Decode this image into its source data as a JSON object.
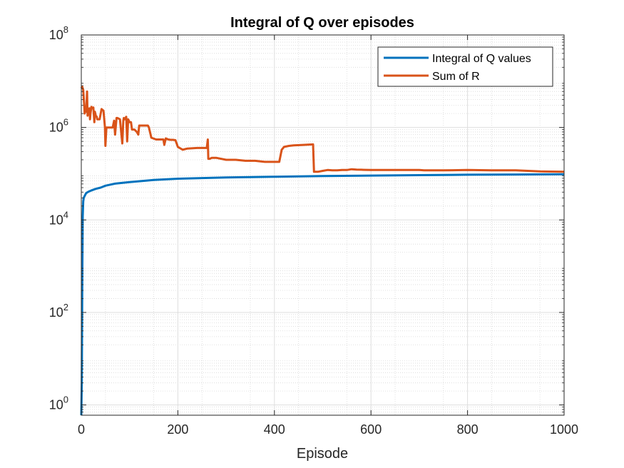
{
  "chart_data": {
    "type": "line",
    "title": "Integral of Q over episodes",
    "xlabel": "Episode",
    "ylabel": "",
    "xlim": [
      0,
      1000
    ],
    "ylim": [
      0.6,
      100000000
    ],
    "yscale": "log",
    "grid": true,
    "minor_grid": true,
    "legend_position": "top-right",
    "x_ticks": [
      {
        "value": 0,
        "label": "0"
      },
      {
        "value": 200,
        "label": "200"
      },
      {
        "value": 400,
        "label": "400"
      },
      {
        "value": 600,
        "label": "600"
      },
      {
        "value": 800,
        "label": "800"
      },
      {
        "value": 1000,
        "label": "1000"
      }
    ],
    "y_ticks": [
      {
        "value": 1,
        "base": "10",
        "exp": "0"
      },
      {
        "value": 100,
        "base": "10",
        "exp": "2"
      },
      {
        "value": 10000,
        "base": "10",
        "exp": "4"
      },
      {
        "value": 1000000,
        "base": "10",
        "exp": "6"
      },
      {
        "value": 100000000,
        "base": "10",
        "exp": "8"
      }
    ],
    "series": [
      {
        "name": "Integral of Q values",
        "color": "#0072BD",
        "x": [
          0,
          1,
          2,
          3,
          4,
          5,
          7,
          10,
          15,
          20,
          30,
          40,
          50,
          70,
          100,
          150,
          200,
          300,
          400,
          500,
          600,
          700,
          800,
          900,
          1000
        ],
        "y": [
          0.6,
          3,
          600,
          12000,
          25000,
          30000,
          33000,
          38000,
          41000,
          43000,
          47000,
          50000,
          55000,
          61000,
          66000,
          73000,
          78000,
          83000,
          86000,
          89000,
          91000,
          93000,
          95000,
          96000,
          97000
        ]
      },
      {
        "name": "Sum of R",
        "color": "#D95319",
        "x": [
          0,
          2,
          4,
          6,
          7,
          9,
          10,
          12,
          13,
          15,
          17,
          18,
          19,
          21,
          23,
          25,
          27,
          28,
          30,
          32,
          33,
          35,
          38,
          42,
          46,
          49,
          50,
          52,
          55,
          60,
          65,
          68,
          70,
          73,
          75,
          80,
          85,
          87,
          88,
          90,
          93,
          95,
          97,
          100,
          103,
          105,
          110,
          115,
          118,
          120,
          123,
          128,
          130,
          134,
          135,
          138,
          140,
          145,
          155,
          165,
          170,
          172,
          175,
          180,
          185,
          190,
          195,
          200,
          210,
          215,
          220,
          240,
          260,
          262,
          263,
          265,
          266,
          270,
          280,
          300,
          320,
          340,
          360,
          380,
          400,
          410,
          415,
          420,
          430,
          440,
          460,
          480,
          482,
          485,
          487,
          490,
          500,
          510,
          520,
          530,
          540,
          550,
          560,
          570,
          580,
          590,
          600,
          650,
          700,
          710,
          750,
          800,
          850,
          900,
          950,
          1000
        ],
        "y": [
          7000000,
          7500000,
          6500000,
          3000000,
          2000000,
          2500000,
          2200000,
          6000000,
          1800000,
          2500000,
          2600000,
          1500000,
          2000000,
          2800000,
          2600000,
          2700000,
          1300000,
          2200000,
          1800000,
          1700000,
          1500000,
          1500000,
          1500000,
          2500000,
          2300000,
          1000000,
          400000,
          1000000,
          1000000,
          1000000,
          1000000,
          1400000,
          700000,
          1600000,
          1600000,
          1500000,
          450000,
          1400000,
          1600000,
          1500000,
          1700000,
          500000,
          1500000,
          1300000,
          1300000,
          900000,
          900000,
          800000,
          700000,
          1100000,
          1100000,
          1100000,
          1100000,
          1100000,
          1100000,
          1100000,
          1000000,
          600000,
          550000,
          550000,
          550000,
          420000,
          580000,
          550000,
          540000,
          540000,
          530000,
          380000,
          330000,
          340000,
          350000,
          360000,
          360000,
          550000,
          210000,
          210000,
          210000,
          220000,
          220000,
          200000,
          200000,
          190000,
          190000,
          180000,
          180000,
          180000,
          330000,
          380000,
          400000,
          410000,
          420000,
          430000,
          110000,
          110000,
          110000,
          110000,
          115000,
          120000,
          118000,
          118000,
          120000,
          120000,
          125000,
          123000,
          122000,
          121000,
          120000,
          120000,
          120000,
          118000,
          118000,
          120000,
          118000,
          118000,
          112000,
          110000
        ]
      }
    ]
  }
}
